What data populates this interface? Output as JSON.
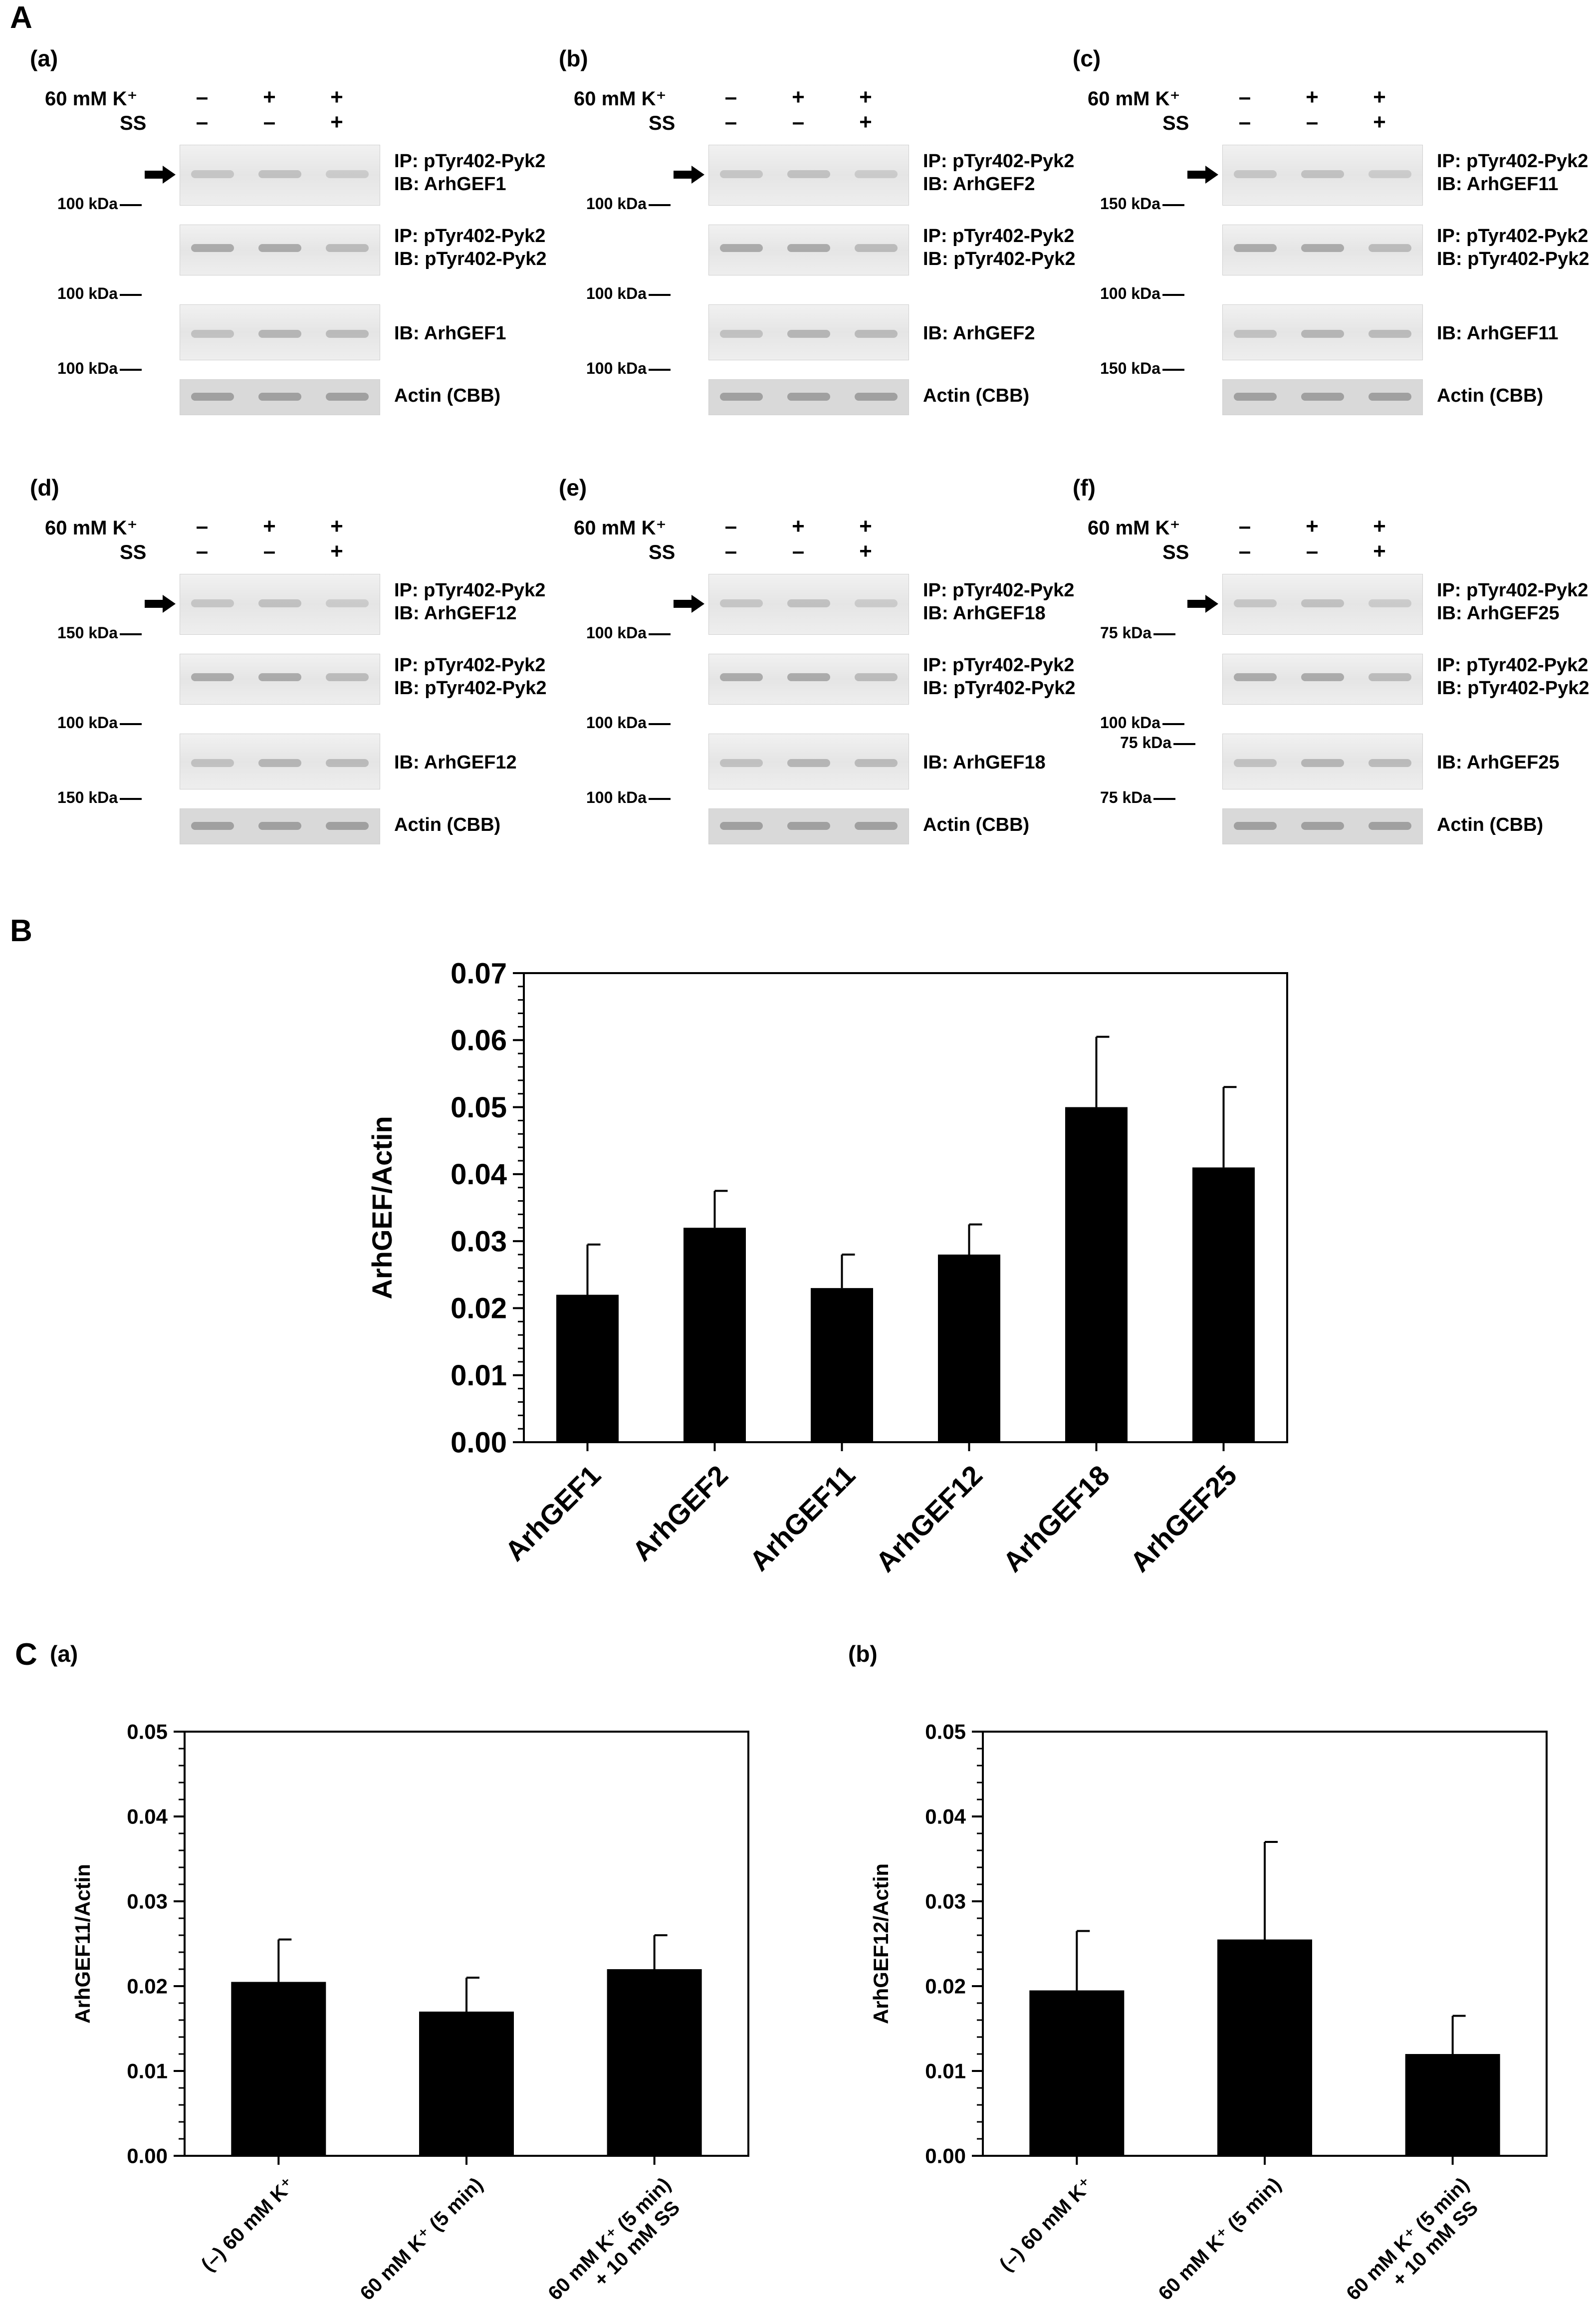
{
  "sections": {
    "a": "A",
    "b": "B",
    "c": "C"
  },
  "conditions": {
    "k": "60 mM K⁺",
    "ss": "SS"
  },
  "symbols": {
    "minus": "–",
    "plus": "+"
  },
  "row_k": [
    "–",
    "+",
    "+"
  ],
  "row_ss": [
    "–",
    "–",
    "+"
  ],
  "common": {
    "ip_pyk2": "IP: pTyr402-Pyk2",
    "ib_pyk2": "IB: pTyr402-Pyk2",
    "actin": "Actin (CBB)"
  },
  "panels": [
    {
      "label": "(a)",
      "ib_target": "IB: ArhGEF1",
      "kda1": "100 kDa",
      "kda2": "100 kDa",
      "kda3": "100 kDa"
    },
    {
      "label": "(b)",
      "ib_target": "IB: ArhGEF2",
      "kda1": "100 kDa",
      "kda2": "100 kDa",
      "kda3": "100 kDa"
    },
    {
      "label": "(c)",
      "ib_target": "IB: ArhGEF11",
      "kda1": "150 kDa",
      "kda2": "100 kDa",
      "kda3": "150 kDa"
    },
    {
      "label": "(d)",
      "ib_target": "IB: ArhGEF12",
      "kda1": "150 kDa",
      "kda2": "100 kDa",
      "kda3": "150 kDa"
    },
    {
      "label": "(e)",
      "ib_target": "IB: ArhGEF18",
      "kda1": "100 kDa",
      "kda2": "100 kDa",
      "kda3": "100 kDa"
    },
    {
      "label": "(f)",
      "ib_target": "IB: ArhGEF25",
      "kda1": "75 kDa",
      "kda2": "100 kDa",
      "kda3": "75 kDa",
      "kda2b": "75 kDa"
    }
  ],
  "chart_data": [
    {
      "type": "bar",
      "title": "",
      "ylabel": "ArhGEF/Actin",
      "xlabel": "",
      "categories": [
        "ArhGEF1",
        "ArhGEF2",
        "ArhGEF11",
        "ArhGEF12",
        "ArhGEF18",
        "ArhGEF25"
      ],
      "values": [
        0.022,
        0.032,
        0.023,
        0.028,
        0.05,
        0.041
      ],
      "errors": [
        0.0075,
        0.0055,
        0.005,
        0.0045,
        0.0105,
        0.012
      ],
      "ylim": [
        0,
        0.07
      ],
      "yticks": [
        "0.00",
        "0.01",
        "0.02",
        "0.03",
        "0.04",
        "0.05",
        "0.06",
        "0.07"
      ],
      "color": "#000000"
    },
    {
      "type": "bar",
      "panel_label": "(a)",
      "ylabel": "ArhGEF11/Actin",
      "categories": [
        "(–) 60 mM K⁺",
        "60 mM K⁺ (5 min)",
        "60 mM K⁺ (5 min)|+ 10 mM SS"
      ],
      "values": [
        0.0205,
        0.017,
        0.022
      ],
      "errors": [
        0.005,
        0.004,
        0.004
      ],
      "ylim": [
        0,
        0.05
      ],
      "yticks": [
        "0.00",
        "0.01",
        "0.02",
        "0.03",
        "0.04",
        "0.05"
      ],
      "color": "#000000"
    },
    {
      "type": "bar",
      "panel_label": "(b)",
      "ylabel": "ArhGEF12/Actin",
      "categories": [
        "(–) 60 mM K⁺",
        "60 mM K⁺ (5 min)",
        "60 mM K⁺ (5 min)|+ 10 mM SS"
      ],
      "values": [
        0.0195,
        0.0255,
        0.012
      ],
      "errors": [
        0.007,
        0.0115,
        0.0045
      ],
      "ylim": [
        0,
        0.05
      ],
      "yticks": [
        "0.00",
        "0.01",
        "0.02",
        "0.03",
        "0.04",
        "0.05"
      ],
      "color": "#000000"
    }
  ]
}
